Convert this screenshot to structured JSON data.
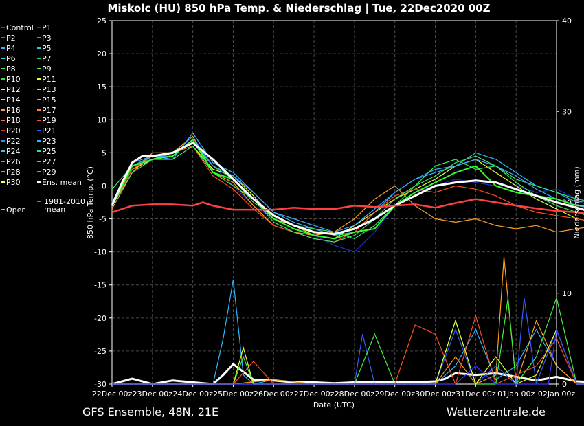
{
  "chart_data": {
    "type": "line",
    "title": "Miskolc  (HU)  850 hPa Temp. & Niederschlag | Tue, 22Dec2020 00Z",
    "xlabel": "Date (UTC)",
    "ylabel": "850 hPa Temp. (°C)",
    "y2label": "Niederschlag (mm)",
    "ylim": [
      -30,
      25
    ],
    "y2lim": [
      0,
      40
    ],
    "yticks": [
      25,
      20,
      15,
      10,
      5,
      0,
      -5,
      -10,
      -15,
      -20,
      -25,
      -30
    ],
    "y2ticks": [
      40,
      30,
      20,
      10,
      0
    ],
    "xticks": [
      "22Dec 00z",
      "23Dec 00z",
      "24Dec 00z",
      "25Dec 00z",
      "26Dec 00z",
      "27Dec 00z",
      "28Dec 00z",
      "29Dec 00z",
      "30Dec 00z",
      "31Dec 00z",
      "01Jan 00z",
      "02Jan 00z"
    ],
    "grid": true,
    "legend_position": "left",
    "legend": [
      {
        "name": "Control",
        "color": "#3a3aff"
      },
      {
        "name": "P1",
        "color": "#1f2fd0"
      },
      {
        "name": "P2",
        "color": "#3b6cff"
      },
      {
        "name": "P3",
        "color": "#2f8fff"
      },
      {
        "name": "P4",
        "color": "#40a8ff"
      },
      {
        "name": "P5",
        "color": "#33c8d8"
      },
      {
        "name": "P6",
        "color": "#2ed8b8"
      },
      {
        "name": "P7",
        "color": "#22d890"
      },
      {
        "name": "P8",
        "color": "#3ee86a"
      },
      {
        "name": "P9",
        "color": "#44f040"
      },
      {
        "name": "P10",
        "color": "#33dd33"
      },
      {
        "name": "P11",
        "color": "#e8ff30"
      },
      {
        "name": "P12",
        "color": "#fff080"
      },
      {
        "name": "P13",
        "color": "#ffd040"
      },
      {
        "name": "P14",
        "color": "#ffc060"
      },
      {
        "name": "P15",
        "color": "#ffa020"
      },
      {
        "name": "P16",
        "color": "#ff9a50"
      },
      {
        "name": "P17",
        "color": "#ff8040"
      },
      {
        "name": "P18",
        "color": "#ff7030"
      },
      {
        "name": "P19",
        "color": "#ff5020"
      },
      {
        "name": "P20",
        "color": "#e03030"
      },
      {
        "name": "P21",
        "color": "#3060ff"
      },
      {
        "name": "P22",
        "color": "#2f8fff"
      },
      {
        "name": "P23",
        "color": "#30b8ff"
      },
      {
        "name": "P24",
        "color": "#33c8e0"
      },
      {
        "name": "P25",
        "color": "#22e0b0"
      },
      {
        "name": "P26",
        "color": "#22d890"
      },
      {
        "name": "P27",
        "color": "#33e860"
      },
      {
        "name": "P28",
        "color": "#44e050"
      },
      {
        "name": "P29",
        "color": "#33dd33"
      },
      {
        "name": "P30",
        "color": "#ffff40"
      },
      {
        "name": "Ens. mean",
        "color": "#ffffff"
      },
      {
        "name": "1981-2010\nmean",
        "color": "#ff4040"
      },
      {
        "name": "Oper",
        "color": "#33ff33"
      }
    ],
    "series": [
      {
        "name": "Ens. mean",
        "color": "#ffffff",
        "x": [
          0,
          0.25,
          0.5,
          0.75,
          1,
          1.5,
          2,
          2.5,
          3,
          3.25,
          3.5,
          4,
          4.5,
          5,
          5.5,
          6,
          6.5,
          7,
          7.5,
          8,
          8.5,
          9,
          9.5,
          10,
          10.5,
          11,
          11.5,
          12
        ],
        "values": [
          -3,
          0.5,
          3.5,
          4.5,
          4.5,
          5,
          6.5,
          4,
          1,
          -0.5,
          -2,
          -4.5,
          -6,
          -7,
          -7.3,
          -6.5,
          -5,
          -3,
          -1.5,
          0,
          0.5,
          0.8,
          0.5,
          -0.5,
          -1.5,
          -2.5,
          -3.3,
          -4.2
        ]
      },
      {
        "name": "1981-2010\nmean",
        "color": "#ff4040",
        "x": [
          0,
          0.5,
          1,
          1.5,
          2,
          2.25,
          2.5,
          3,
          3.5,
          4,
          4.5,
          5,
          5.5,
          6,
          6.5,
          7,
          7.5,
          8,
          8.5,
          9,
          9.5,
          10,
          10.5,
          11,
          11.5,
          12
        ],
        "values": [
          -4,
          -3,
          -2.8,
          -2.8,
          -3,
          -2.5,
          -3,
          -3.6,
          -3.6,
          -3.6,
          -3.3,
          -3.5,
          -3.5,
          -3,
          -3.2,
          -3,
          -2.8,
          -3.3,
          -2.6,
          -2,
          -2.5,
          -3,
          -3.4,
          -3.8,
          -4,
          -4.5
        ]
      },
      {
        "name": "Oper",
        "color": "#33ff33",
        "x": [
          0,
          0.5,
          1,
          1.5,
          2,
          2.5,
          3,
          3.5,
          4,
          4.5,
          5,
          5.5,
          6,
          6.5,
          7,
          7.5,
          8,
          8.5,
          9,
          9.5,
          10,
          10.5,
          11,
          11.5,
          12
        ],
        "values": [
          -3,
          3,
          4,
          4.5,
          7,
          2,
          1,
          -2,
          -5,
          -6.5,
          -7.5,
          -8,
          -7,
          -6.5,
          -3,
          -1,
          0.5,
          2,
          3,
          0,
          -1,
          -1.5,
          -2,
          -3,
          -3
        ]
      },
      {
        "name": "P1",
        "color": "#1f2fd0",
        "x": [
          0,
          0.5,
          1,
          1.5,
          2,
          2.5,
          3,
          3.5,
          4,
          4.5,
          5,
          5.5,
          6,
          6.5,
          7,
          7.5,
          8,
          8.5,
          9,
          9.5,
          10,
          10.5,
          11,
          11.5,
          12
        ],
        "values": [
          -2.5,
          3,
          4.5,
          4.5,
          7.5,
          3,
          0,
          -3,
          -5,
          -6.5,
          -7.5,
          -9,
          -10,
          -7,
          -3,
          -1,
          0,
          1,
          0.5,
          0,
          0,
          -1,
          -0.5,
          -2,
          -4
        ]
      },
      {
        "name": "P11",
        "color": "#e8ff30",
        "x": [
          0,
          0.5,
          1,
          1.5,
          2,
          2.5,
          3,
          3.5,
          4,
          4.5,
          5,
          5.5,
          6,
          6.5,
          7,
          7.5,
          8,
          8.5,
          9,
          9.5,
          10,
          10.5,
          11,
          11.5,
          12
        ],
        "values": [
          -3,
          2.5,
          4,
          5,
          6,
          2.5,
          1.5,
          -1.5,
          -5,
          -6,
          -7.5,
          -8,
          -6,
          -4,
          -2,
          -0.5,
          1,
          3,
          4,
          2,
          0,
          -2,
          -3.5,
          -5,
          -5.5
        ]
      },
      {
        "name": "P15",
        "color": "#ffa020",
        "x": [
          0,
          0.5,
          1,
          1.5,
          2,
          2.5,
          3,
          3.5,
          4,
          4.5,
          5,
          5.5,
          6,
          6.5,
          7,
          7.5,
          8,
          8.5,
          9,
          9.5,
          10,
          10.5,
          11,
          11.5,
          12
        ],
        "values": [
          -3.5,
          2,
          5,
          5,
          7.5,
          2,
          0.5,
          -3,
          -6,
          -7,
          -7.5,
          -7,
          -5,
          -2,
          0,
          -3,
          -5,
          -5.5,
          -5,
          -6,
          -6.5,
          -6,
          -7,
          -6.5,
          -6
        ]
      },
      {
        "name": "P23",
        "color": "#30b8ff",
        "x": [
          0,
          0.5,
          1,
          1.5,
          2,
          2.5,
          3,
          3.5,
          4,
          4.5,
          5,
          5.5,
          6,
          6.5,
          7,
          7.5,
          8,
          8.5,
          9,
          9.5,
          10,
          10.5,
          11,
          11.5,
          12
        ],
        "values": [
          -2.5,
          3.5,
          4.5,
          4,
          8,
          3.5,
          2,
          -1,
          -4,
          -5.5,
          -6.5,
          -7.5,
          -7,
          -4,
          -1,
          1,
          2,
          3,
          5,
          4,
          2,
          0,
          -1,
          -2.5,
          -2
        ]
      },
      {
        "name": "P27",
        "color": "#33e860",
        "x": [
          0,
          0.5,
          1,
          1.5,
          2,
          2.5,
          3,
          3.5,
          4,
          4.5,
          5,
          5.5,
          6,
          6.5,
          7,
          7.5,
          8,
          8.5,
          9,
          9.5,
          10,
          10.5,
          11,
          11.5,
          12
        ],
        "values": [
          -0.5,
          3,
          4,
          5,
          6.5,
          3,
          1,
          -2.5,
          -4.5,
          -6,
          -6.5,
          -7,
          -8,
          -6,
          -3,
          0,
          3,
          4,
          2.5,
          3,
          1,
          0,
          -1,
          -2,
          -2.5
        ]
      },
      {
        "name": "P19",
        "color": "#ff5020",
        "x": [
          0,
          0.5,
          1,
          1.5,
          2,
          2.5,
          3,
          3.5,
          4,
          4.5,
          5,
          5.5,
          6,
          6.5,
          7,
          7.5,
          8,
          8.5,
          9,
          9.5,
          10,
          10.5,
          11,
          11.5,
          12
        ],
        "values": [
          -3,
          2.5,
          4.5,
          5,
          6,
          1.5,
          -0.5,
          -3.5,
          -6,
          -7,
          -8,
          -8.5,
          -7,
          -4,
          -1.5,
          -0.5,
          -1,
          0,
          -0.5,
          -1.5,
          -3,
          -4,
          -4.5,
          -5,
          -5.5
        ]
      },
      {
        "name": "P4",
        "color": "#40a8ff",
        "x": [
          0,
          0.5,
          1,
          1.5,
          2,
          2.5,
          3,
          3.5,
          4,
          4.5,
          5,
          5.5,
          6,
          6.5,
          7,
          7.5,
          8,
          8.5,
          9,
          9.5,
          10,
          10.5,
          11,
          11.5,
          12
        ],
        "values": [
          -3,
          3,
          4.5,
          4.5,
          7,
          3,
          1.5,
          -1,
          -4,
          -5,
          -6,
          -7,
          -6,
          -3.5,
          -1,
          1,
          2.5,
          3,
          4,
          3,
          1.5,
          -0.5,
          -2,
          -3,
          -3.5
        ]
      },
      {
        "name": "P8",
        "color": "#3ee86a",
        "x": [
          0,
          0.5,
          1,
          1.5,
          2,
          2.5,
          3,
          3.5,
          4,
          4.5,
          5,
          5.5,
          6,
          6.5,
          7,
          7.5,
          8,
          8.5,
          9,
          9.5,
          10,
          10.5,
          11,
          11.5,
          12
        ],
        "values": [
          -3,
          2,
          4,
          4,
          6,
          2,
          0,
          -2,
          -5.5,
          -7,
          -8,
          -8.5,
          -7.5,
          -5,
          -2,
          0,
          1.5,
          3.5,
          4.5,
          3,
          0.5,
          -1.5,
          -3,
          -4,
          -5
        ]
      }
    ],
    "precip": [
      {
        "name": "Ens. mean",
        "color": "#ffffff",
        "x": [
          0,
          0.5,
          1,
          1.5,
          2,
          2.5,
          2.75,
          3,
          3.5,
          4,
          4.5,
          5,
          5.5,
          6,
          6.5,
          7,
          7.5,
          8,
          8.25,
          8.5,
          9,
          9.5,
          10,
          10.5,
          11,
          11.5,
          12
        ],
        "values": [
          0,
          0.6,
          0,
          0.4,
          0.2,
          0,
          1,
          2.2,
          0.5,
          0.4,
          0.2,
          0.2,
          0.1,
          0.2,
          0.2,
          0.2,
          0.2,
          0.3,
          0.6,
          1.2,
          1,
          1.2,
          0.8,
          0.4,
          0.8,
          0.3,
          0.2
        ]
      },
      {
        "name": "P23",
        "color": "#30b8ff",
        "x": [
          0,
          2.5,
          2.75,
          3,
          3.25,
          3.5,
          4,
          5,
          6,
          7,
          8,
          8.5,
          9,
          9.5,
          10,
          10.5,
          11,
          11.5,
          12
        ],
        "values": [
          0,
          0,
          5,
          11.5,
          1,
          0,
          0.5,
          0,
          0,
          0,
          0,
          2,
          6,
          0.5,
          2,
          6,
          2,
          0,
          0
        ]
      },
      {
        "name": "P15",
        "color": "#ffa020",
        "x": [
          0,
          3,
          4,
          5,
          6,
          7,
          8,
          8.5,
          9,
          9.5,
          9.7,
          10,
          10.5,
          11,
          11.5,
          12
        ],
        "values": [
          0,
          0,
          0.5,
          0,
          0,
          0,
          0,
          3,
          0,
          1,
          14,
          0,
          7,
          2,
          0,
          0
        ]
      },
      {
        "name": "P21",
        "color": "#3060ff",
        "x": [
          0,
          3,
          4,
          5,
          6,
          6.2,
          6.5,
          7,
          8,
          8.5,
          9,
          9.5,
          10,
          10.2,
          10.5,
          11,
          11.5,
          12
        ],
        "values": [
          0,
          0,
          0,
          0,
          0,
          5.5,
          0,
          0,
          0,
          6,
          0,
          2,
          0,
          9.5,
          0,
          6,
          0,
          0
        ]
      },
      {
        "name": "P9",
        "color": "#44f040",
        "x": [
          0,
          3,
          3.25,
          3.5,
          4,
          5,
          6,
          6.5,
          7,
          8,
          8.5,
          9,
          9.5,
          9.8,
          10,
          10.5,
          11,
          11.5,
          12
        ],
        "values": [
          0,
          0,
          3,
          0,
          0,
          0,
          0,
          5.5,
          0,
          0,
          7,
          0,
          0,
          9.5,
          0,
          3,
          9.5,
          0,
          0
        ]
      },
      {
        "name": "P19",
        "color": "#ff5020",
        "x": [
          0,
          3,
          3.5,
          4,
          5,
          6,
          7,
          7.5,
          8,
          8.5,
          9,
          9.5,
          10,
          10.5,
          11,
          11.5,
          12
        ],
        "values": [
          0,
          0,
          2.5,
          0,
          0,
          0,
          0,
          6.5,
          5.5,
          0,
          7.5,
          0,
          1,
          2,
          5,
          0,
          0
        ]
      },
      {
        "name": "P11",
        "color": "#e8ff30",
        "x": [
          0,
          3,
          3.25,
          3.5,
          4,
          5,
          6,
          7,
          8,
          8.5,
          9,
          9.5,
          10,
          10.5,
          11,
          11.5,
          12
        ],
        "values": [
          0,
          0,
          4,
          0,
          0,
          0,
          0,
          0,
          0,
          7,
          0,
          3,
          0,
          1,
          6,
          0,
          0
        ]
      },
      {
        "name": "Control",
        "color": "#3a3aff",
        "x": [
          0,
          8,
          8.5,
          9,
          9.5,
          10,
          10.5,
          10.8,
          11,
          11.5,
          12
        ],
        "values": [
          0,
          0,
          0,
          2,
          0,
          0,
          0,
          0,
          6,
          0,
          0
        ]
      }
    ]
  },
  "footer": {
    "left": "GFS Ensemble, 48N, 21E",
    "right": "Wetterzentrale.de"
  }
}
